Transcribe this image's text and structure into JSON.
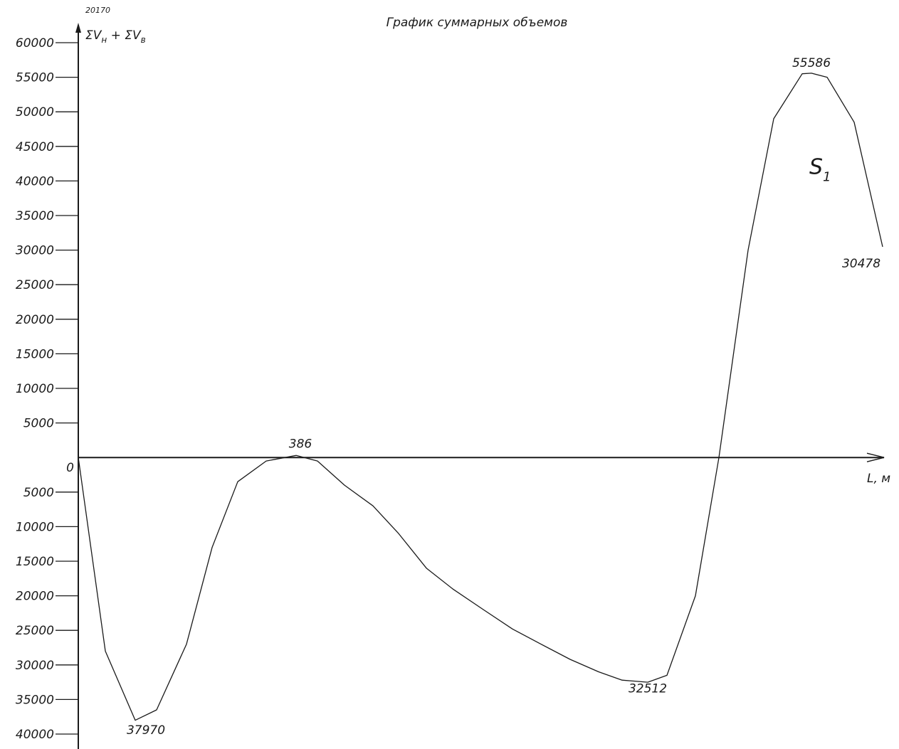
{
  "chart_data": {
    "type": "line",
    "title": "График суммарных объемов",
    "corner_mark": "20170",
    "ylabel_parts": [
      "ΣV",
      "н",
      " + ΣV",
      "в"
    ],
    "xlabel": "L, м",
    "ylim": [
      -40000,
      60000
    ],
    "yticks": [
      {
        "value": 60000,
        "label": "60000"
      },
      {
        "value": 55000,
        "label": "55000"
      },
      {
        "value": 50000,
        "label": "50000"
      },
      {
        "value": 45000,
        "label": "45000"
      },
      {
        "value": 40000,
        "label": "40000"
      },
      {
        "value": 35000,
        "label": "35000"
      },
      {
        "value": 30000,
        "label": "30000"
      },
      {
        "value": 25000,
        "label": "25000"
      },
      {
        "value": 20000,
        "label": "20000"
      },
      {
        "value": 15000,
        "label": "15000"
      },
      {
        "value": 10000,
        "label": "10000"
      },
      {
        "value": 5000,
        "label": "5000"
      },
      {
        "value": 0,
        "label": "0"
      },
      {
        "value": -5000,
        "label": "5000"
      },
      {
        "value": -10000,
        "label": "10000"
      },
      {
        "value": -15000,
        "label": "15000"
      },
      {
        "value": -20000,
        "label": "20000"
      },
      {
        "value": -25000,
        "label": "25000"
      },
      {
        "value": -30000,
        "label": "30000"
      },
      {
        "value": -35000,
        "label": "35000"
      },
      {
        "value": -40000,
        "label": "40000"
      }
    ],
    "xlim": [
      0,
      1130
    ],
    "series": [
      {
        "values": [
          [
            0,
            0
          ],
          [
            38,
            -28000
          ],
          [
            80,
            -38000
          ],
          [
            110,
            -36500
          ],
          [
            152,
            -27000
          ],
          [
            188,
            -13000
          ],
          [
            224,
            -3500
          ],
          [
            264,
            -500
          ],
          [
            306,
            300
          ],
          [
            336,
            -500
          ],
          [
            374,
            -4000
          ],
          [
            414,
            -7000
          ],
          [
            450,
            -11000
          ],
          [
            489,
            -16000
          ],
          [
            526,
            -19000
          ],
          [
            569,
            -22000
          ],
          [
            610,
            -24800
          ],
          [
            650,
            -27000
          ],
          [
            691,
            -29200
          ],
          [
            731,
            -31000
          ],
          [
            764,
            -32200
          ],
          [
            800,
            -32500
          ],
          [
            827,
            -31500
          ],
          [
            867,
            -20000
          ],
          [
            900,
            0
          ],
          [
            941,
            30000
          ],
          [
            977,
            49000
          ],
          [
            1017,
            55500
          ],
          [
            1030,
            55586
          ],
          [
            1052,
            55000
          ],
          [
            1090,
            48500
          ],
          [
            1130,
            30478
          ]
        ]
      }
    ],
    "annotations": [
      {
        "text": "37970",
        "x": 95,
        "y": -40000
      },
      {
        "text": "386",
        "x": 312,
        "y": 1400
      },
      {
        "text": "32512",
        "x": 800,
        "y": -34000
      },
      {
        "text": "55586",
        "x": 1030,
        "y": 56500
      },
      {
        "text": "30478",
        "x": 1100,
        "y": 27500
      }
    ],
    "region_label": {
      "main": "S",
      "sub": "1",
      "x": 1027,
      "y": 41000
    }
  }
}
